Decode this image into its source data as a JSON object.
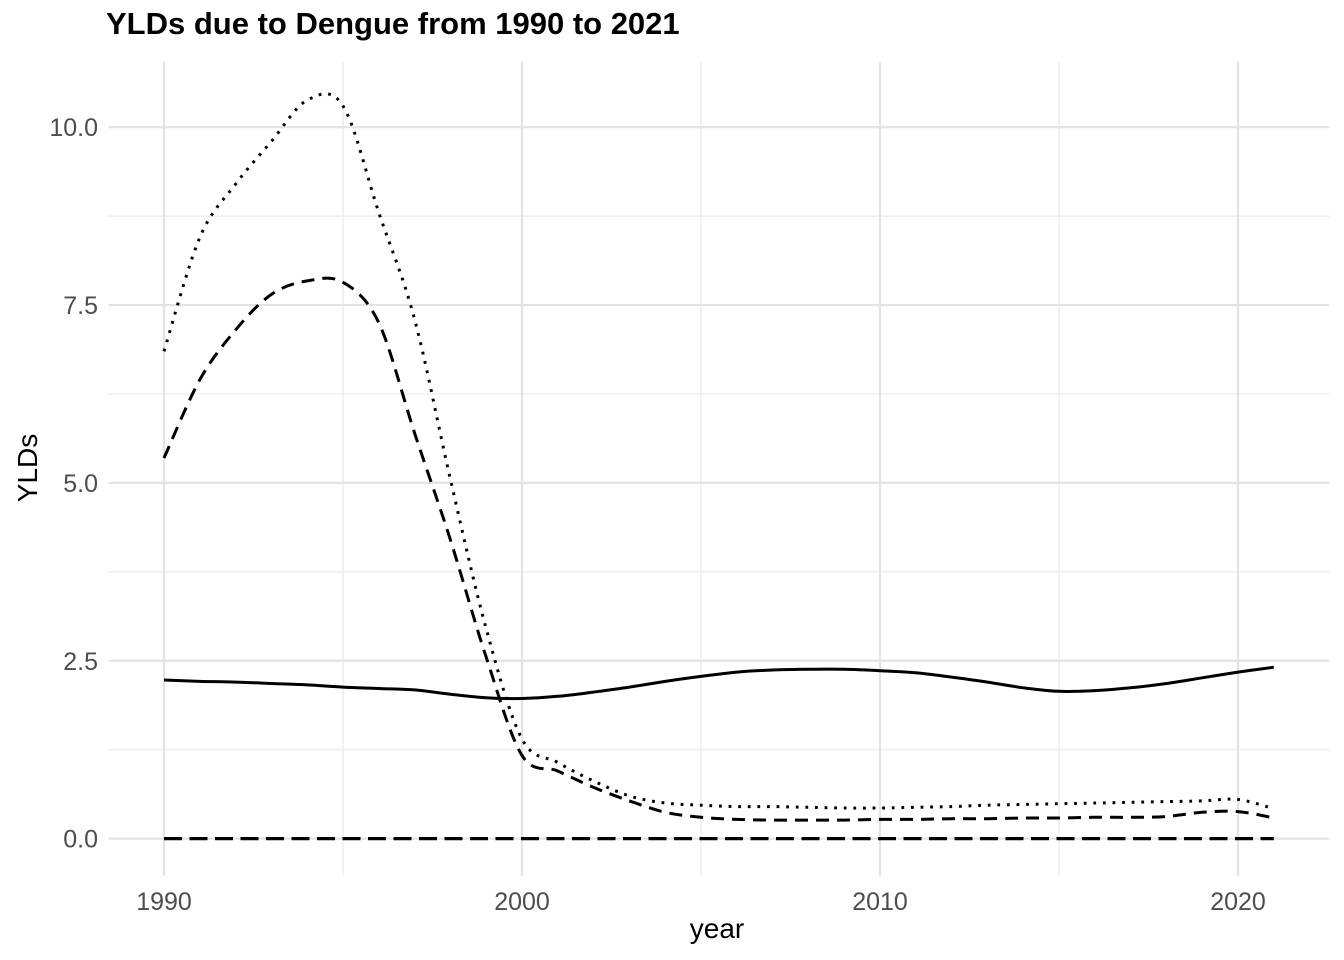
{
  "chart_data": {
    "type": "line",
    "title": "YLDs due to Dengue from 1990 to 2021",
    "xlabel": "year",
    "ylabel": "YLDs",
    "grid": true,
    "legend": "none",
    "xlim": [
      1988.45,
      2022.55
    ],
    "ylim": [
      -0.52,
      10.92
    ],
    "x_ticks": [
      1990,
      2000,
      2010,
      2020
    ],
    "x_tick_labels": [
      "1990",
      "2000",
      "2010",
      "2020"
    ],
    "x_minor_ticks": [
      1995,
      2005,
      2015
    ],
    "y_ticks": [
      0.0,
      2.5,
      5.0,
      7.5,
      10.0
    ],
    "y_tick_labels": [
      "0.0",
      "2.5",
      "5.0",
      "7.5",
      "10.0"
    ],
    "y_minor_ticks": [
      1.25,
      3.75,
      6.25,
      8.75
    ],
    "x": [
      1990,
      1991,
      1992,
      1993,
      1994,
      1995,
      1996,
      1997,
      1998,
      1999,
      2000,
      2001,
      2002,
      2003,
      2004,
      2005,
      2006,
      2007,
      2008,
      2009,
      2010,
      2011,
      2012,
      2013,
      2014,
      2015,
      2016,
      2017,
      2018,
      2019,
      2020,
      2021
    ],
    "series": [
      {
        "name": "dotted-line",
        "linetype": "dotted",
        "values": [
          6.85,
          8.45,
          9.2,
          9.8,
          10.38,
          10.3,
          8.8,
          7.3,
          5.05,
          2.95,
          1.4,
          1.07,
          0.81,
          0.6,
          0.5,
          0.47,
          0.45,
          0.45,
          0.44,
          0.43,
          0.43,
          0.44,
          0.45,
          0.47,
          0.48,
          0.49,
          0.5,
          0.51,
          0.52,
          0.53,
          0.55,
          0.42
        ]
      },
      {
        "name": "dashed-line",
        "linetype": "dashed",
        "values": [
          5.35,
          6.45,
          7.15,
          7.65,
          7.84,
          7.82,
          7.25,
          5.7,
          4.2,
          2.55,
          1.17,
          0.95,
          0.72,
          0.53,
          0.37,
          0.3,
          0.27,
          0.26,
          0.26,
          0.26,
          0.27,
          0.27,
          0.28,
          0.28,
          0.29,
          0.29,
          0.3,
          0.3,
          0.31,
          0.37,
          0.38,
          0.29
        ]
      },
      {
        "name": "solid-line",
        "linetype": "solid",
        "values": [
          2.23,
          2.21,
          2.2,
          2.18,
          2.16,
          2.13,
          2.11,
          2.09,
          2.03,
          1.98,
          1.97,
          2.0,
          2.06,
          2.13,
          2.21,
          2.28,
          2.34,
          2.37,
          2.38,
          2.38,
          2.36,
          2.33,
          2.27,
          2.2,
          2.12,
          2.07,
          2.08,
          2.12,
          2.18,
          2.26,
          2.34,
          2.41
        ]
      },
      {
        "name": "zero-longdash-line",
        "linetype": "longdash",
        "values": [
          0,
          0,
          0,
          0,
          0,
          0,
          0,
          0,
          0,
          0,
          0,
          0,
          0,
          0,
          0,
          0,
          0,
          0,
          0,
          0,
          0,
          0,
          0,
          0,
          0,
          0,
          0,
          0,
          0,
          0,
          0,
          0
        ]
      }
    ],
    "colors": {
      "line": "#000000",
      "grid_major": "#e3e3e3",
      "grid_minor": "#ededed",
      "axis_text": "#4d4d4d",
      "title_text": "#000000"
    }
  }
}
